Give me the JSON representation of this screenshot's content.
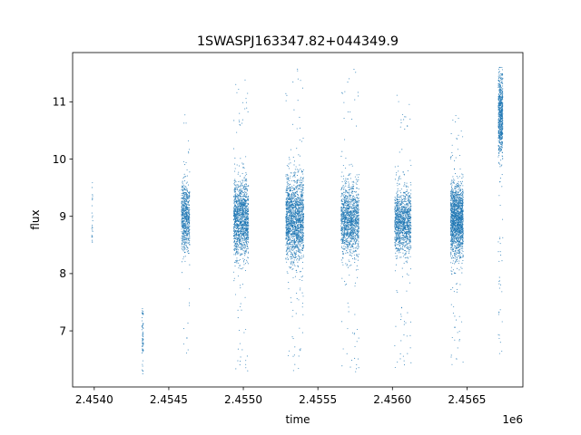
{
  "chart_data": {
    "type": "scatter",
    "title": "1SWASPJ163347.82+044349.9",
    "xlabel": "time",
    "ylabel": "flux",
    "x_offset_label": "1e6",
    "xlim": [
      2453855,
      2456875
    ],
    "ylim": [
      6.02,
      11.86
    ],
    "x_ticks": [
      2454000,
      2454500,
      2455000,
      2455500,
      2456000,
      2456500
    ],
    "x_tick_labels": [
      "2.4540",
      "2.4545",
      "2.4550",
      "2.4555",
      "2.4560",
      "2.4565"
    ],
    "y_ticks": [
      7,
      8,
      9,
      10,
      11
    ],
    "y_tick_labels": [
      "7",
      "8",
      "9",
      "10",
      "11"
    ],
    "grid": false,
    "legend": "none",
    "marker_color": "#1f77b4",
    "clusters": [
      {
        "x_start": 2453983,
        "x_end": 2453990,
        "y_mean": 9.0,
        "y_spread": 0.35,
        "y_min": 8.55,
        "y_max": 9.85,
        "points": 25
      },
      {
        "x_start": 2454320,
        "x_end": 2454330,
        "y_mean": 6.85,
        "y_spread": 0.25,
        "y_min": 6.25,
        "y_max": 7.45,
        "points": 70
      },
      {
        "x_start": 2454585,
        "x_end": 2454640,
        "y_mean": 9.0,
        "y_spread": 0.3,
        "y_min": 6.5,
        "y_max": 10.85,
        "points": 700
      },
      {
        "x_start": 2454935,
        "x_end": 2455035,
        "y_mean": 8.95,
        "y_spread": 0.33,
        "y_min": 6.3,
        "y_max": 11.45,
        "points": 1400
      },
      {
        "x_start": 2455285,
        "x_end": 2455405,
        "y_mean": 8.95,
        "y_spread": 0.36,
        "y_min": 6.3,
        "y_max": 11.6,
        "points": 1700
      },
      {
        "x_start": 2455655,
        "x_end": 2455775,
        "y_mean": 8.95,
        "y_spread": 0.3,
        "y_min": 6.25,
        "y_max": 11.6,
        "points": 1300
      },
      {
        "x_start": 2456015,
        "x_end": 2456125,
        "y_mean": 8.9,
        "y_spread": 0.28,
        "y_min": 6.35,
        "y_max": 11.2,
        "points": 1200
      },
      {
        "x_start": 2456390,
        "x_end": 2456475,
        "y_mean": 8.95,
        "y_spread": 0.3,
        "y_min": 6.4,
        "y_max": 10.9,
        "points": 1600
      },
      {
        "x_start": 2456710,
        "x_end": 2456740,
        "y_mean": 10.75,
        "y_spread": 0.35,
        "y_min": 6.55,
        "y_max": 11.6,
        "points": 650
      }
    ]
  }
}
